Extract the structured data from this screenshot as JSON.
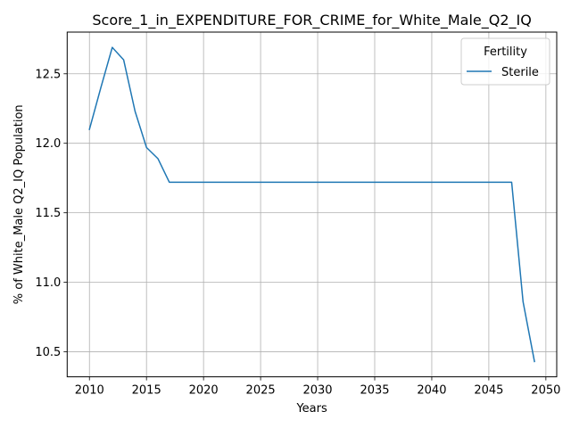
{
  "chart_data": {
    "type": "line",
    "title": "Score_1_in_EXPENDITURE_FOR_CRIME_for_White_Male_Q2_IQ",
    "xlabel": "Years",
    "ylabel": "% of White_Male Q2_IQ Population",
    "xlim": [
      2008.05,
      2050.95
    ],
    "ylim": [
      10.32,
      12.8
    ],
    "xticks": [
      2010,
      2015,
      2020,
      2025,
      2030,
      2035,
      2040,
      2045,
      2050
    ],
    "yticks": [
      10.5,
      11.0,
      11.5,
      12.0,
      12.5
    ],
    "ytick_labels": [
      "10.5",
      "11.0",
      "11.5",
      "12.0",
      "12.5"
    ],
    "grid": true,
    "legend": {
      "title": "Fertility",
      "placement": "top-right"
    },
    "series": [
      {
        "name": "Sterile",
        "color": "#1f77b4",
        "x": [
          2010,
          2011,
          2012,
          2013,
          2014,
          2015,
          2016,
          2017,
          2018,
          2019,
          2020,
          2021,
          2022,
          2023,
          2024,
          2025,
          2026,
          2027,
          2028,
          2029,
          2030,
          2031,
          2032,
          2033,
          2034,
          2035,
          2036,
          2037,
          2038,
          2039,
          2040,
          2041,
          2042,
          2043,
          2044,
          2045,
          2046,
          2047,
          2048,
          2049
        ],
        "values": [
          12.1,
          12.4,
          12.69,
          12.6,
          12.23,
          11.97,
          11.89,
          11.72,
          11.72,
          11.72,
          11.72,
          11.72,
          11.72,
          11.72,
          11.72,
          11.72,
          11.72,
          11.72,
          11.72,
          11.72,
          11.72,
          11.72,
          11.72,
          11.72,
          11.72,
          11.72,
          11.72,
          11.72,
          11.72,
          11.72,
          11.72,
          11.72,
          11.72,
          11.72,
          11.72,
          11.72,
          11.72,
          11.72,
          10.86,
          10.43
        ]
      }
    ]
  }
}
